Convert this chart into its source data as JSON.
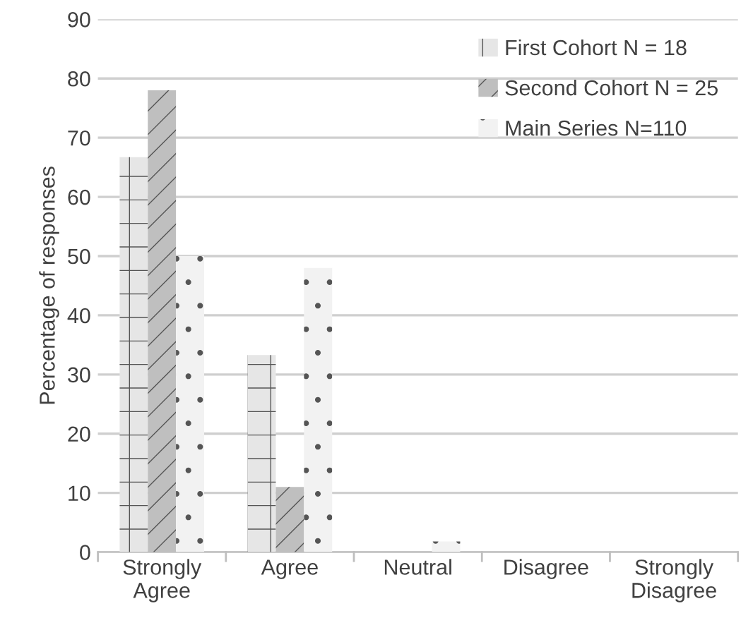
{
  "chart_data": {
    "type": "bar",
    "ylabel": "Percentage of responses",
    "categories": [
      "Strongly\nAgree",
      "Agree",
      "Neutral",
      "Disagree",
      "Strongly\nDisagree"
    ],
    "series": [
      {
        "name": "First Cohort N = 18",
        "color": "#e6e6e6",
        "values": [
          66.7,
          33.3,
          0,
          0,
          0
        ]
      },
      {
        "name": "Second Cohort N = 25",
        "color": "#bfbfbf",
        "values": [
          78,
          11,
          0,
          0,
          0
        ]
      },
      {
        "name": "Main Series N=110",
        "color": "#f2f2f2",
        "values": [
          50,
          48,
          1.8,
          0,
          0
        ]
      }
    ],
    "ylim": [
      0,
      90
    ],
    "yticks": [
      0,
      10,
      20,
      30,
      40,
      50,
      60,
      70,
      80,
      90
    ],
    "grid": "y",
    "legend": "top right"
  }
}
